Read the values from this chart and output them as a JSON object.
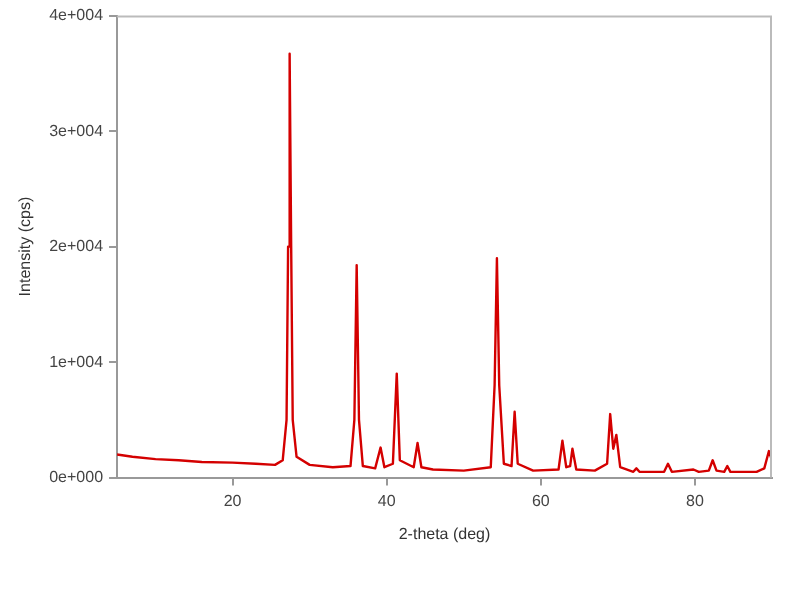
{
  "chart_data": {
    "type": "line",
    "xlabel": "2-theta (deg)",
    "ylabel": "Intensity (cps)",
    "xlim": [
      5,
      90
    ],
    "xticks": [
      20,
      40,
      60,
      80
    ],
    "ylim": [
      0,
      40000
    ],
    "yticks": [
      {
        "value": 0,
        "label": "0e+000"
      },
      {
        "value": 10000,
        "label": "1e+004"
      },
      {
        "value": 20000,
        "label": "2e+004"
      },
      {
        "value": 30000,
        "label": "3e+004"
      },
      {
        "value": 40000,
        "label": "4e+004"
      }
    ],
    "grid": false,
    "legend": false,
    "marker": "none",
    "line_style": "solid",
    "series": [
      {
        "color": "#d40000",
        "x": [
          5,
          7,
          10,
          13,
          16,
          20,
          23,
          25.5,
          26.5,
          27.0,
          27.2,
          27.4,
          27.6,
          27.8,
          28.3,
          30,
          33,
          35.3,
          35.8,
          36.1,
          36.4,
          36.9,
          38.5,
          39.2,
          39.7,
          40.8,
          41.3,
          41.7,
          43.5,
          44.0,
          44.5,
          46,
          50,
          53.5,
          54.0,
          54.3,
          54.6,
          55.2,
          56.2,
          56.6,
          57.0,
          59,
          62.3,
          62.8,
          63.3,
          63.8,
          64.1,
          64.6,
          67,
          68.6,
          69.0,
          69.4,
          69.8,
          70.3,
          72,
          72.4,
          72.8,
          76,
          76.5,
          77,
          79.8,
          80.5,
          81.8,
          82.3,
          82.8,
          83.8,
          84.2,
          84.6,
          88,
          89.0,
          89.6,
          90
        ],
        "values": [
          2000,
          1800,
          1600,
          1500,
          1350,
          1300,
          1200,
          1100,
          1500,
          5000,
          20000,
          36700,
          20000,
          5000,
          1800,
          1100,
          900,
          1000,
          5000,
          18400,
          5000,
          1000,
          800,
          2600,
          900,
          1200,
          9000,
          1500,
          900,
          3000,
          900,
          700,
          600,
          900,
          8000,
          19000,
          8000,
          1200,
          1000,
          5700,
          1200,
          600,
          700,
          3200,
          900,
          1000,
          2500,
          700,
          600,
          1200,
          5500,
          2500,
          3700,
          900,
          500,
          800,
          500,
          500,
          1200,
          500,
          700,
          500,
          600,
          1500,
          600,
          500,
          1000,
          500,
          500,
          800,
          2300,
          1500
        ]
      }
    ]
  }
}
